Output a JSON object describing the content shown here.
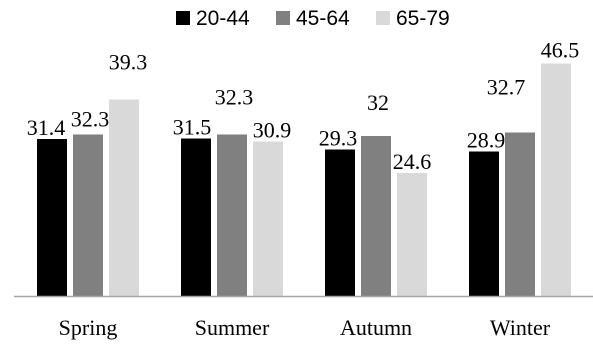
{
  "chart_data": {
    "type": "bar",
    "categories": [
      "Spring",
      "Summer",
      "Autumn",
      "Winter"
    ],
    "series": [
      {
        "name": "20-44",
        "color": "#000000",
        "values": [
          31.4,
          31.5,
          29.3,
          28.9
        ]
      },
      {
        "name": "45-64",
        "color": "#808080",
        "values": [
          32.3,
          32.3,
          32,
          32.7
        ]
      },
      {
        "name": "65-79",
        "color": "#d9d9d9",
        "values": [
          39.3,
          30.9,
          24.6,
          46.5
        ]
      }
    ],
    "value_labels": [
      [
        "31.4",
        "32.3",
        "39.3"
      ],
      [
        "31.5",
        "32.3",
        "30.9"
      ],
      [
        "29.3",
        "32",
        "24.6"
      ],
      [
        "28.9",
        "32.7",
        "46.5"
      ]
    ],
    "ylim": [
      0,
      50
    ],
    "legend_position": "top",
    "grid": false,
    "baseline_color": "#a6a6a6"
  }
}
